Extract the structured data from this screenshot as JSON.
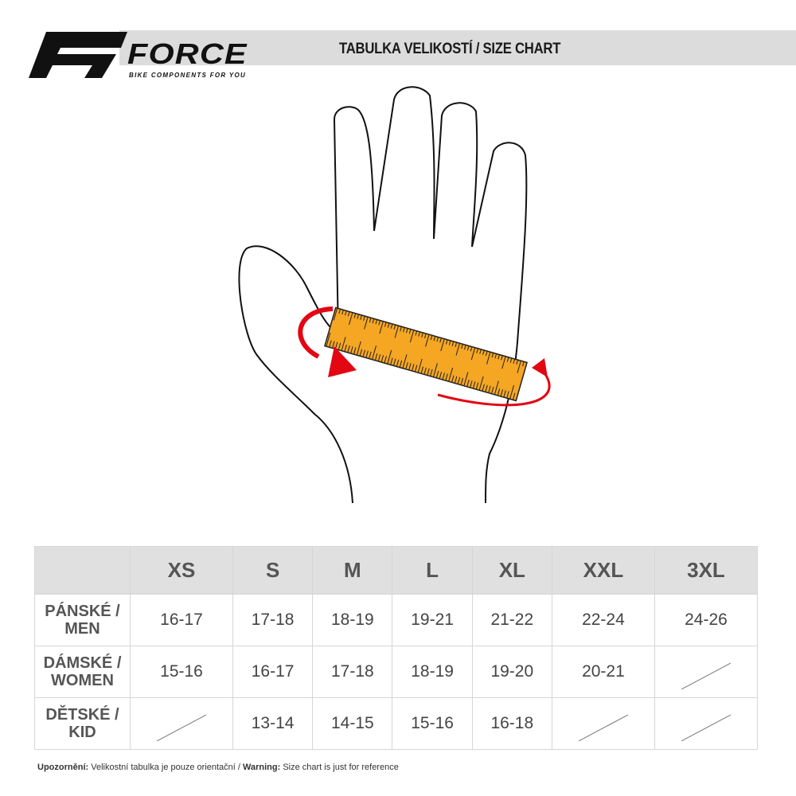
{
  "header": {
    "brand": "FORCE",
    "tagline": "BIKE COMPONENTS FOR YOU",
    "title": "TABULKA VELIKOSTÍ / SIZE CHART"
  },
  "colors": {
    "banner": "#dcdcdc",
    "tape": "#f5a623",
    "arrow": "#e30613"
  },
  "table": {
    "sizes": [
      "XS",
      "S",
      "M",
      "L",
      "XL",
      "XXL",
      "3XL"
    ],
    "rows": [
      {
        "label_line1": "PÁNSKÉ /",
        "label_line2": "MEN",
        "values": [
          "16-17",
          "17-18",
          "18-19",
          "19-21",
          "21-22",
          "22-24",
          "24-26"
        ]
      },
      {
        "label_line1": "DÁMSKÉ /",
        "label_line2": "WOMEN",
        "values": [
          "15-16",
          "16-17",
          "17-18",
          "18-19",
          "19-20",
          "20-21",
          null
        ]
      },
      {
        "label_line1": "DĚTSKÉ /",
        "label_line2": "KID",
        "values": [
          null,
          "13-14",
          "14-15",
          "15-16",
          "16-18",
          null,
          null
        ]
      }
    ]
  },
  "note": {
    "label_cz": "Upozornění:",
    "text_cz": " Velikostní tabulka je pouze orientační / ",
    "label_en": "Warning:",
    "text_en": " Size chart is just for reference"
  }
}
